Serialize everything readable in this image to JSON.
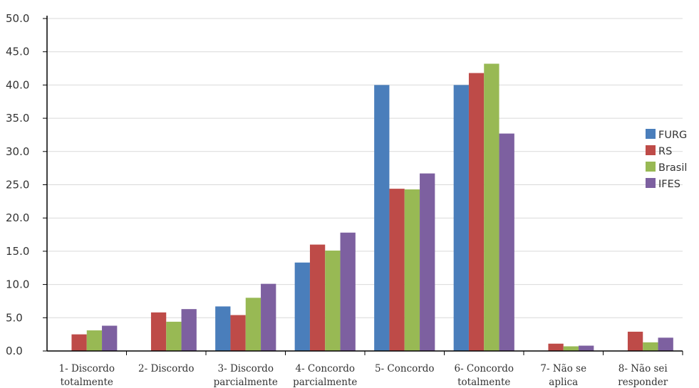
{
  "chart_data": {
    "type": "bar",
    "categories": [
      [
        "1- Discordo",
        "totalmente"
      ],
      [
        "2- Discordo"
      ],
      [
        "3- Discordo",
        "parcialmente"
      ],
      [
        "4- Concordo",
        "parcialmente"
      ],
      [
        "5- Concordo"
      ],
      [
        "6- Concordo",
        "totalmente"
      ],
      [
        "7- Não se",
        "aplica"
      ],
      [
        "8- Não sei",
        "responder"
      ]
    ],
    "series": [
      {
        "name": "FURG",
        "color": "#4a7ebb",
        "values": [
          0,
          0,
          6.7,
          13.3,
          40.0,
          40.0,
          0,
          0
        ]
      },
      {
        "name": "RS",
        "color": "#be4b48",
        "values": [
          2.5,
          5.8,
          5.4,
          16.0,
          24.4,
          41.8,
          1.1,
          2.9
        ]
      },
      {
        "name": "Brasil",
        "color": "#98b954",
        "values": [
          3.1,
          4.4,
          8.0,
          15.1,
          24.3,
          43.2,
          0.7,
          1.3
        ]
      },
      {
        "name": "IFES",
        "color": "#7d60a0",
        "values": [
          3.8,
          6.3,
          10.1,
          17.8,
          26.7,
          32.7,
          0.8,
          2.0
        ]
      }
    ],
    "ylim": [
      0,
      50
    ],
    "yticks": [
      "0.0",
      "5.0",
      "10.0",
      "15.0",
      "20.0",
      "25.0",
      "30.0",
      "35.0",
      "40.0",
      "45.0",
      "50.0"
    ],
    "grid": true,
    "legend": "right",
    "xlabel": "",
    "ylabel": ""
  }
}
